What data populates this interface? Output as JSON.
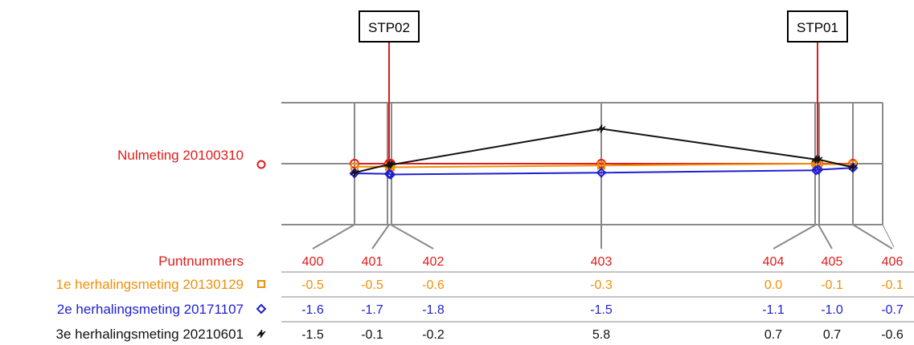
{
  "chart_data": {
    "type": "line",
    "boxes": [
      {
        "label": "STP02",
        "at_x": 1.05
      },
      {
        "label": "STP01",
        "at_x": 5.35
      }
    ],
    "baseline_label": "Nulmeting 20100310",
    "baseline_marker": "circle",
    "points_header": "Puntnummers",
    "x": [
      0,
      1,
      2,
      3,
      4,
      5,
      6
    ],
    "point_labels": [
      "400",
      "401",
      "402",
      "403",
      "404",
      "405",
      "406"
    ],
    "series": [
      {
        "name": "1e herhalingsmeting 20130129",
        "date": "20130129",
        "marker": "square",
        "color": "#f0900a",
        "values": [
          -0.5,
          -0.5,
          -0.6,
          -0.3,
          0.0,
          -0.1,
          -0.1
        ],
        "labels": [
          "-0.5",
          "-0.5",
          "-0.6",
          "-0.3",
          "0.0",
          "-0.1",
          "-0.1"
        ]
      },
      {
        "name": "2e herhalingsmeting 20171107",
        "date": "20171107",
        "marker": "diamond",
        "color": "#1f1fd2",
        "values": [
          -1.6,
          -1.7,
          -1.8,
          -1.5,
          -1.1,
          -1.0,
          -0.7
        ],
        "labels": [
          "-1.6",
          "-1.7",
          "-1.8",
          "-1.5",
          "-1.1",
          "-1.0",
          "-0.7"
        ]
      },
      {
        "name": "3e herhalingsmeting 20210601",
        "date": "20210601",
        "marker": "bolt",
        "color": "#111111",
        "values": [
          -1.5,
          -0.1,
          -0.2,
          5.8,
          0.7,
          0.7,
          -0.6
        ],
        "labels": [
          "-1.5",
          "-0.1",
          "-0.2",
          "5.8",
          "0.7",
          "0.7",
          "-0.6"
        ]
      }
    ],
    "colors": {
      "baseline": "#e01b1b",
      "grid": "#8a8a8a"
    },
    "grid": true
  }
}
